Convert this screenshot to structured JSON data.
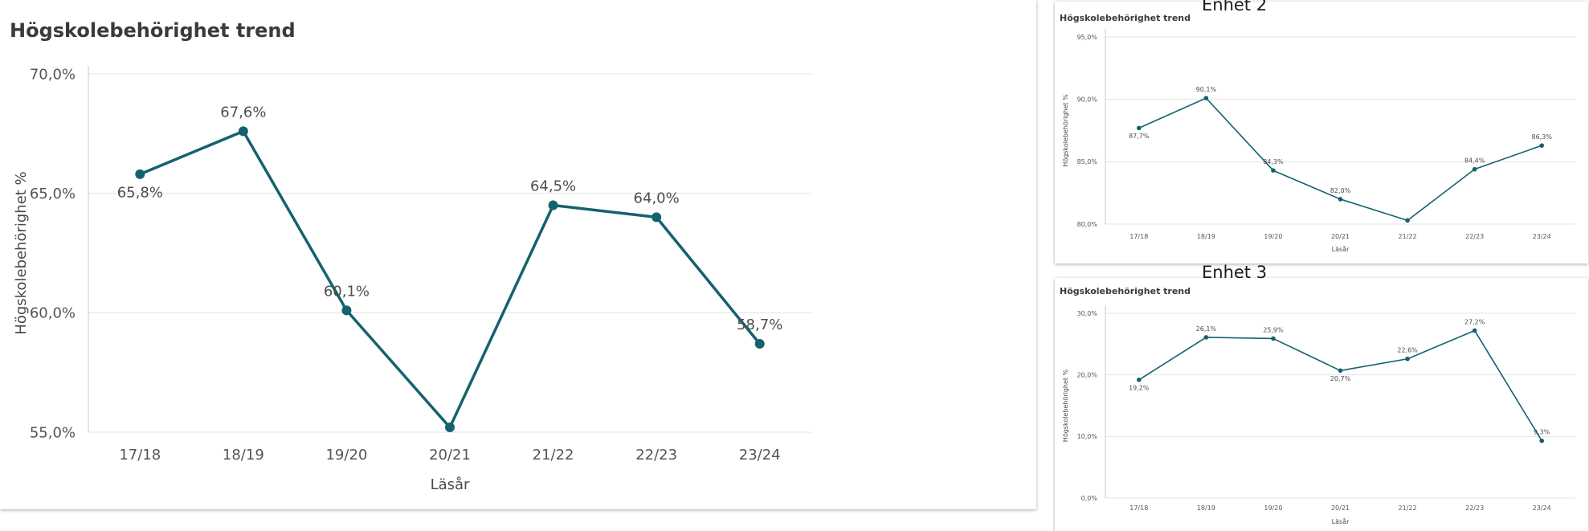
{
  "labels": {
    "enhet2": "Enhet 2",
    "enhet3": "Enhet 3"
  },
  "colors": {
    "line": "#15616e",
    "grid": "#e3e3e3"
  },
  "chart_data": [
    {
      "type": "line",
      "title": "Högskolebehörighet trend",
      "xlabel": "Läsår",
      "ylabel": "Högskolebehörighet %",
      "categories": [
        "17/18",
        "18/19",
        "19/20",
        "20/21",
        "21/22",
        "22/23",
        "23/24"
      ],
      "values": [
        65.8,
        67.6,
        60.1,
        55.2,
        64.5,
        64.0,
        58.7
      ],
      "data_labels": [
        "65,8%",
        "67,6%",
        "60,1%",
        "",
        "64,5%",
        "64,0%",
        "58,7%"
      ],
      "label_pos": [
        "below",
        "above",
        "above",
        "none",
        "above",
        "above",
        "above"
      ],
      "ylim": [
        55,
        70
      ],
      "yticks": [
        55,
        60,
        65,
        70
      ],
      "ytick_labels": [
        "55,0%",
        "60,0%",
        "65,0%",
        "70,0%"
      ],
      "grid": true
    },
    {
      "type": "line",
      "title": "Högskolebehörighet trend",
      "xlabel": "Läsår",
      "ylabel": "Högskolebehörighet %",
      "categories": [
        "17/18",
        "18/19",
        "19/20",
        "20/21",
        "21/22",
        "22/23",
        "23/24"
      ],
      "values": [
        87.7,
        90.1,
        84.3,
        82.0,
        80.3,
        84.4,
        86.3
      ],
      "data_labels": [
        "87,7%",
        "90,1%",
        "84,3%",
        "82,0%",
        "",
        "84,4%",
        "86,3%"
      ],
      "label_pos": [
        "below",
        "above",
        "above",
        "above",
        "none",
        "above",
        "above"
      ],
      "ylim": [
        80,
        95
      ],
      "yticks": [
        80,
        85,
        90,
        95
      ],
      "ytick_labels": [
        "80,0%",
        "85,0%",
        "90,0%",
        "95,0%"
      ],
      "grid": true
    },
    {
      "type": "line",
      "title": "Högskolebehörighet trend",
      "xlabel": "Läsår",
      "ylabel": "Högskolebehörighet %",
      "categories": [
        "17/18",
        "18/19",
        "19/20",
        "20/21",
        "21/22",
        "22/23",
        "23/24"
      ],
      "values": [
        19.2,
        26.1,
        25.9,
        20.7,
        22.6,
        27.2,
        9.3
      ],
      "data_labels": [
        "19,2%",
        "26,1%",
        "25,9%",
        "20,7%",
        "22,6%",
        "27,2%",
        "9,3%"
      ],
      "label_pos": [
        "below",
        "above",
        "above",
        "below",
        "above",
        "above",
        "above"
      ],
      "ylim": [
        0,
        30
      ],
      "yticks": [
        0,
        10,
        20,
        30
      ],
      "ytick_labels": [
        "0,0%",
        "10,0%",
        "20,0%",
        "30,0%"
      ],
      "grid": true
    }
  ]
}
